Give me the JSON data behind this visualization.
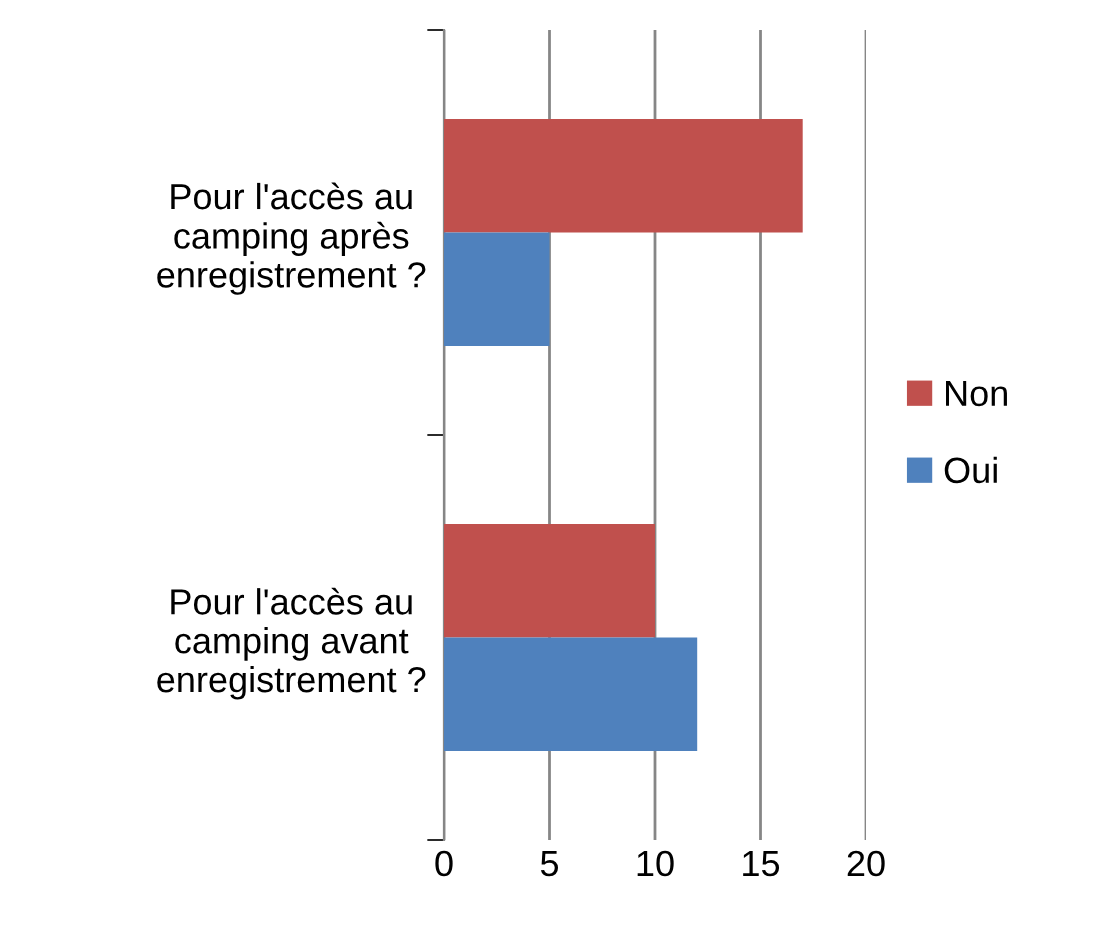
{
  "chart_data": {
    "type": "bar",
    "orientation": "horizontal",
    "categories": [
      "Pour l'accès au\ncamping après\nenregistrement ?",
      "Pour l'accès au\ncamping avant\nenregistrement ?"
    ],
    "series": [
      {
        "name": "Non",
        "color": "#c0504d",
        "values": [
          17,
          10
        ]
      },
      {
        "name": "Oui",
        "color": "#4f81bd",
        "values": [
          5,
          12
        ]
      }
    ],
    "xlim": [
      0,
      20
    ],
    "xticks": [
      0,
      5,
      10,
      15,
      20
    ],
    "grid": "x",
    "legend": "right"
  }
}
